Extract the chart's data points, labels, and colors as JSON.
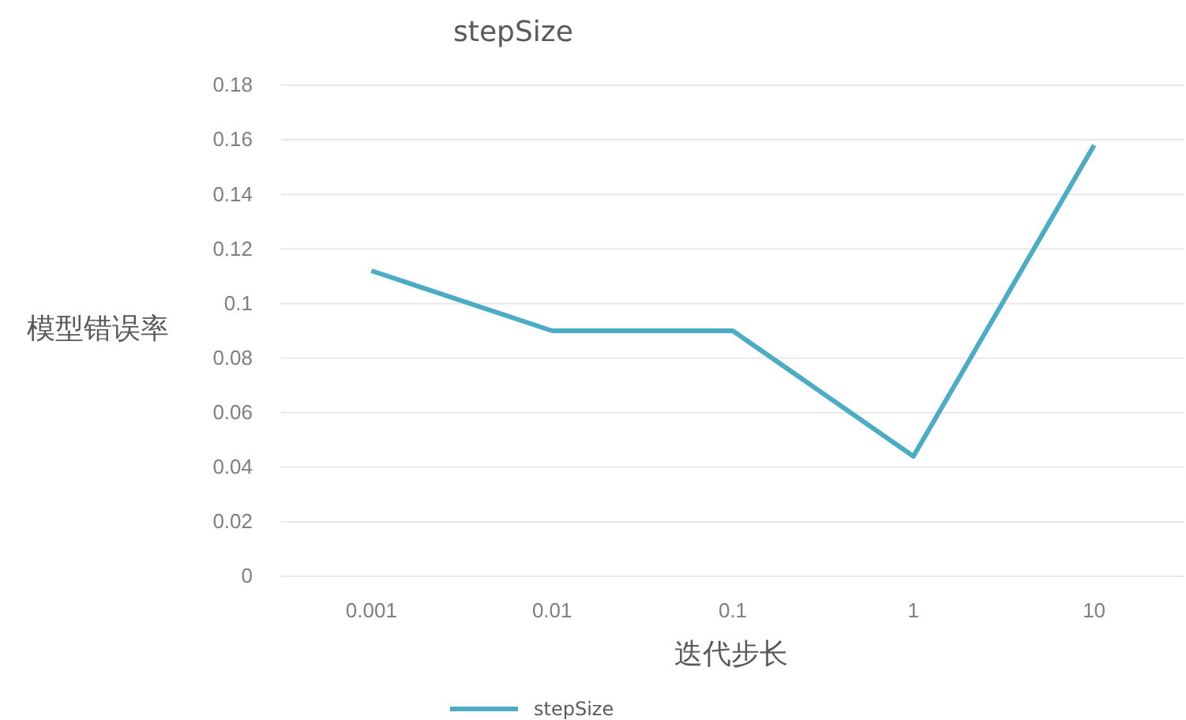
{
  "chart_data": {
    "type": "line",
    "title": "stepSize",
    "xlabel": "迭代步长",
    "ylabel": "模型错误率",
    "categories": [
      "0.001",
      "0.01",
      "0.1",
      "1",
      "10"
    ],
    "series": [
      {
        "name": "stepSize",
        "color": "#4bacc6",
        "values": [
          0.112,
          0.09,
          0.09,
          0.044,
          0.158
        ]
      }
    ],
    "ylim": [
      0,
      0.18
    ],
    "yticks": [
      0,
      0.02,
      0.04,
      0.06,
      0.08,
      0.1,
      0.12,
      0.14,
      0.16,
      0.18
    ],
    "grid": "y",
    "legend": "bottom",
    "marker": "none",
    "line_style": "solid"
  }
}
